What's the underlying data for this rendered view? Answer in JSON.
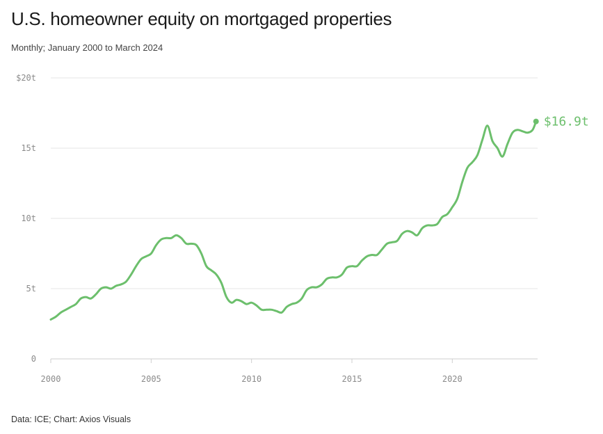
{
  "header": {
    "title": "U.S. homeowner equity on mortgaged properties",
    "subtitle": "Monthly; January 2000 to March 2024"
  },
  "footer": {
    "source": "Data: ICE; Chart: Axios Visuals"
  },
  "colors": {
    "series": "#6cbf6c"
  },
  "chart_data": {
    "type": "line",
    "title": "U.S. homeowner equity on mortgaged properties",
    "subtitle": "Monthly; January 2000 to March 2024",
    "xlabel": "",
    "ylabel": "",
    "xlim": [
      2000,
      2024.25
    ],
    "ylim": [
      0,
      20
    ],
    "grid": true,
    "legend": "none",
    "y_ticks": [
      {
        "value": 0,
        "label": "0"
      },
      {
        "value": 5,
        "label": "5t"
      },
      {
        "value": 10,
        "label": "10t"
      },
      {
        "value": 15,
        "label": "15t"
      },
      {
        "value": 20,
        "label": "$20t"
      }
    ],
    "x_ticks": [
      {
        "value": 2000,
        "label": "2000"
      },
      {
        "value": 2005,
        "label": "2005"
      },
      {
        "value": 2010,
        "label": "2010"
      },
      {
        "value": 2015,
        "label": "2015"
      },
      {
        "value": 2020,
        "label": "2020"
      }
    ],
    "end_label": "$16.9t",
    "series": [
      {
        "x": [
          2000.0,
          2000.25,
          2000.5,
          2000.75,
          2001.0,
          2001.25,
          2001.5,
          2001.75,
          2002.0,
          2002.25,
          2002.5,
          2002.75,
          2003.0,
          2003.25,
          2003.5,
          2003.75,
          2004.0,
          2004.25,
          2004.5,
          2004.75,
          2005.0,
          2005.25,
          2005.5,
          2005.75,
          2006.0,
          2006.25,
          2006.5,
          2006.75,
          2007.0,
          2007.25,
          2007.5,
          2007.75,
          2008.0,
          2008.25,
          2008.5,
          2008.75,
          2009.0,
          2009.25,
          2009.5,
          2009.75,
          2010.0,
          2010.25,
          2010.5,
          2010.75,
          2011.0,
          2011.25,
          2011.5,
          2011.75,
          2012.0,
          2012.25,
          2012.5,
          2012.75,
          2013.0,
          2013.25,
          2013.5,
          2013.75,
          2014.0,
          2014.25,
          2014.5,
          2014.75,
          2015.0,
          2015.25,
          2015.5,
          2015.75,
          2016.0,
          2016.25,
          2016.5,
          2016.75,
          2017.0,
          2017.25,
          2017.5,
          2017.75,
          2018.0,
          2018.25,
          2018.5,
          2018.75,
          2019.0,
          2019.25,
          2019.5,
          2019.75,
          2020.0,
          2020.25,
          2020.5,
          2020.75,
          2021.0,
          2021.25,
          2021.5,
          2021.75,
          2022.0,
          2022.25,
          2022.5,
          2022.75,
          2023.0,
          2023.25,
          2023.5,
          2023.75,
          2024.0,
          2024.17
        ],
        "values": [
          2.8,
          3.0,
          3.3,
          3.5,
          3.7,
          3.9,
          4.3,
          4.4,
          4.3,
          4.6,
          5.0,
          5.1,
          5.0,
          5.2,
          5.3,
          5.5,
          6.0,
          6.6,
          7.1,
          7.3,
          7.5,
          8.1,
          8.5,
          8.6,
          8.6,
          8.8,
          8.6,
          8.2,
          8.2,
          8.1,
          7.5,
          6.6,
          6.3,
          6.0,
          5.4,
          4.4,
          4.0,
          4.2,
          4.1,
          3.9,
          4.0,
          3.8,
          3.5,
          3.5,
          3.5,
          3.4,
          3.3,
          3.7,
          3.9,
          4.0,
          4.3,
          4.9,
          5.1,
          5.1,
          5.3,
          5.7,
          5.8,
          5.8,
          6.0,
          6.5,
          6.6,
          6.6,
          7.0,
          7.3,
          7.4,
          7.4,
          7.8,
          8.2,
          8.3,
          8.4,
          8.9,
          9.1,
          9.0,
          8.8,
          9.3,
          9.5,
          9.5,
          9.6,
          10.1,
          10.3,
          10.8,
          11.4,
          12.6,
          13.6,
          14.0,
          14.5,
          15.6,
          16.6,
          15.5,
          15.0,
          14.4,
          15.3,
          16.1,
          16.3,
          16.2,
          16.1,
          16.3,
          16.9
        ]
      }
    ]
  }
}
